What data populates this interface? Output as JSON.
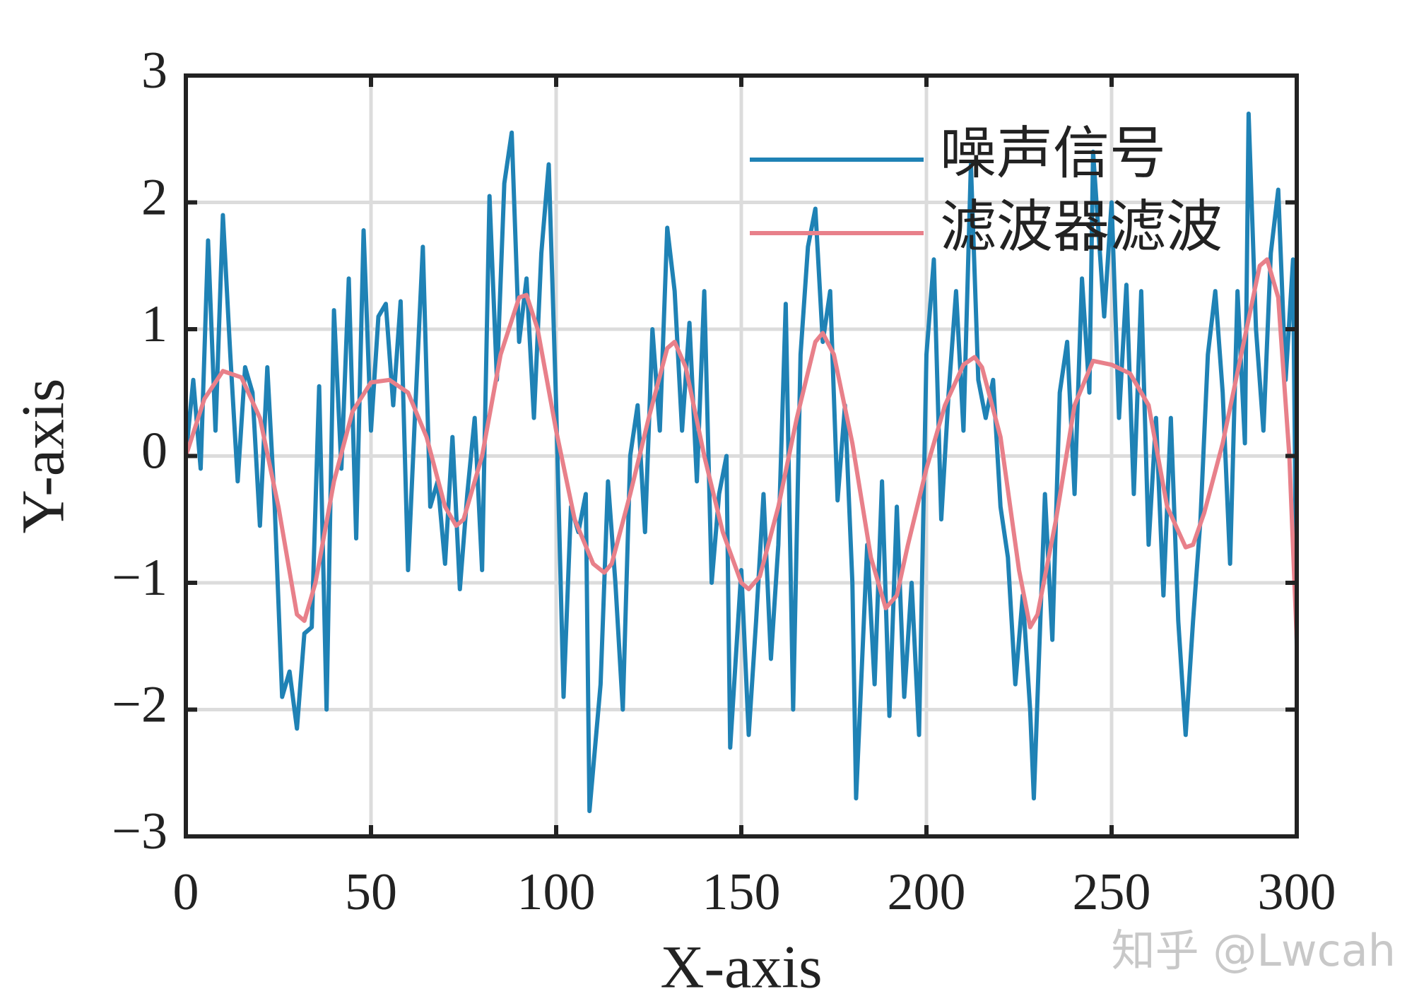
{
  "chart_data": {
    "type": "line",
    "xlabel": "X-axis",
    "ylabel": "Y-axis",
    "xlim": [
      0,
      300
    ],
    "xticks": [
      0,
      50,
      100,
      150,
      200,
      250,
      300
    ],
    "ylim": [
      -3,
      3
    ],
    "yticks": [
      {
        "value": -3,
        "label": "−3"
      },
      {
        "value": -2,
        "label": "−2"
      },
      {
        "value": -1,
        "label": "−1"
      },
      0,
      1,
      2,
      3
    ],
    "grid": true,
    "legend": "upper right",
    "watermark": "知乎 @Lwcah",
    "series": [
      {
        "name": "噪声信号",
        "color": "#1f82b5",
        "x": [
          0,
          2,
          4,
          6,
          8,
          10,
          12,
          14,
          16,
          18,
          20,
          22,
          24,
          26,
          28,
          30,
          32,
          34,
          36,
          38,
          40,
          42,
          44,
          46,
          48,
          50,
          52,
          54,
          56,
          58,
          60,
          62,
          64,
          66,
          68,
          70,
          72,
          74,
          76,
          78,
          80,
          82,
          84,
          86,
          88,
          90,
          92,
          94,
          96,
          98,
          100,
          102,
          104,
          106,
          108,
          109,
          112,
          114,
          116,
          118,
          120,
          122,
          124,
          126,
          128,
          130,
          132,
          134,
          136,
          138,
          140,
          142,
          144,
          146,
          147,
          150,
          152,
          154,
          156,
          158,
          160,
          162,
          164,
          166,
          168,
          170,
          172,
          174,
          176,
          178,
          180,
          181,
          184,
          186,
          188,
          190,
          192,
          194,
          196,
          198,
          200,
          202,
          204,
          206,
          208,
          210,
          212,
          214,
          216,
          218,
          220,
          222,
          224,
          226,
          228,
          229,
          232,
          234,
          236,
          238,
          240,
          242,
          244,
          245,
          248,
          250,
          252,
          254,
          256,
          258,
          260,
          262,
          264,
          266,
          268,
          270,
          272,
          274,
          276,
          278,
          280,
          282,
          284,
          286,
          287,
          289,
          291,
          293,
          295,
          297,
          299,
          300
        ],
        "values": [
          0,
          0.6,
          -0.1,
          1.7,
          0.2,
          1.9,
          0.8,
          -0.2,
          0.7,
          0.5,
          -0.55,
          0.7,
          -0.4,
          -1.9,
          -1.7,
          -2.15,
          -1.4,
          -1.35,
          0.55,
          -2.0,
          1.15,
          -0.1,
          1.4,
          -0.65,
          1.78,
          0.2,
          1.1,
          1.2,
          0.4,
          1.22,
          -0.9,
          0.4,
          1.65,
          -0.4,
          -0.2,
          -0.85,
          0.15,
          -1.05,
          -0.3,
          0.3,
          -0.9,
          2.05,
          0.6,
          2.15,
          2.55,
          0.9,
          1.4,
          0.3,
          1.6,
          2.3,
          0.4,
          -1.9,
          -0.4,
          -0.6,
          -0.3,
          -2.8,
          -1.8,
          -0.2,
          -1.0,
          -2.0,
          0.0,
          0.4,
          -0.6,
          1.0,
          0.2,
          1.8,
          1.3,
          0.2,
          1.05,
          -0.2,
          1.3,
          -1.0,
          -0.3,
          0.0,
          -2.3,
          -0.9,
          -2.2,
          -1.3,
          -0.3,
          -1.6,
          -0.7,
          1.2,
          -2.0,
          0.8,
          1.65,
          1.95,
          0.9,
          1.3,
          -0.35,
          0.4,
          -1.0,
          -2.7,
          -0.7,
          -1.8,
          -0.2,
          -2.05,
          -0.4,
          -1.9,
          -1.0,
          -2.2,
          0.8,
          1.55,
          -0.5,
          0.5,
          1.3,
          0.2,
          2.3,
          0.6,
          0.3,
          0.6,
          -0.4,
          -0.8,
          -1.8,
          -1.1,
          -2.0,
          -2.7,
          -0.3,
          -1.45,
          0.5,
          0.9,
          -0.3,
          1.4,
          0.5,
          2.4,
          1.1,
          2.0,
          0.3,
          1.35,
          -0.3,
          1.3,
          -0.7,
          0.3,
          -1.1,
          0.3,
          -1.3,
          -2.2,
          -1.3,
          -0.5,
          0.8,
          1.3,
          0.5,
          -0.85,
          1.3,
          0.1,
          2.7,
          1.0,
          0.2,
          1.6,
          2.1,
          0.6,
          1.55,
          -1.5
        ]
      },
      {
        "name": "滤波器滤波",
        "color": "#e8808a",
        "x": [
          0,
          5,
          10,
          15,
          20,
          25,
          30,
          32,
          35,
          40,
          45,
          50,
          55,
          60,
          65,
          70,
          73,
          75,
          80,
          85,
          90,
          92,
          95,
          100,
          105,
          110,
          113,
          115,
          120,
          125,
          130,
          132,
          135,
          140,
          145,
          150,
          152,
          155,
          160,
          165,
          170,
          172,
          175,
          180,
          185,
          189,
          192,
          195,
          200,
          205,
          210,
          213,
          215,
          220,
          225,
          228,
          230,
          235,
          240,
          245,
          250,
          255,
          260,
          265,
          270,
          272,
          275,
          280,
          285,
          290,
          292,
          295,
          298,
          300
        ],
        "values": [
          0,
          0.45,
          0.67,
          0.62,
          0.3,
          -0.4,
          -1.25,
          -1.3,
          -1.0,
          -0.2,
          0.35,
          0.58,
          0.6,
          0.5,
          0.15,
          -0.4,
          -0.55,
          -0.5,
          0.0,
          0.8,
          1.25,
          1.27,
          1.0,
          0.2,
          -0.5,
          -0.85,
          -0.92,
          -0.85,
          -0.3,
          0.3,
          0.85,
          0.9,
          0.7,
          0.0,
          -0.6,
          -1.0,
          -1.05,
          -0.95,
          -0.4,
          0.3,
          0.9,
          0.97,
          0.8,
          0.1,
          -0.8,
          -1.2,
          -1.1,
          -0.7,
          -0.1,
          0.4,
          0.72,
          0.78,
          0.7,
          0.15,
          -0.9,
          -1.35,
          -1.25,
          -0.5,
          0.4,
          0.75,
          0.72,
          0.65,
          0.4,
          -0.4,
          -0.72,
          -0.7,
          -0.45,
          0.1,
          0.8,
          1.5,
          1.55,
          1.25,
          0.0,
          -1.45
        ]
      }
    ]
  }
}
